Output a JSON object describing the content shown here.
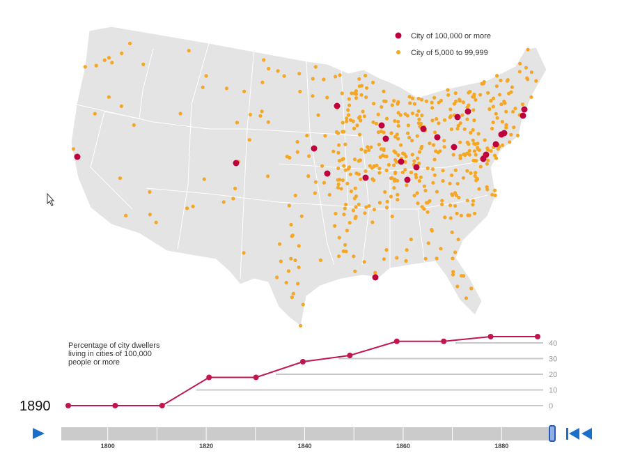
{
  "legend": [
    {
      "label": "City of 100,000 or more",
      "color": "#c0003c"
    },
    {
      "label": "City of 5,000 to 99,999",
      "color": "#f5a623"
    }
  ],
  "current_year": "1890",
  "controls": {
    "play_icon": "play-icon",
    "reset_icon": "skip-to-start-icon",
    "accent": "#1a6fc9"
  },
  "chart_data": {
    "type": "line",
    "title": "Percentage of city dwellers living in cities of 100,000 people or more",
    "title_lines": [
      "Percentage of city dwellers",
      "living in cities of 100,000",
      "people or more"
    ],
    "x": [
      1790,
      1800,
      1810,
      1820,
      1830,
      1840,
      1850,
      1860,
      1870,
      1880,
      1890
    ],
    "values": [
      0,
      0,
      0,
      18,
      18,
      28,
      32,
      41,
      41,
      44,
      44
    ],
    "ylim": [
      0,
      40
    ],
    "yticks": [
      "0",
      "10",
      "20",
      "30",
      "40"
    ],
    "color": "#c0164e",
    "grid": true
  },
  "slider": {
    "ticks": [
      "1800",
      "1820",
      "1840",
      "1860",
      "1880"
    ],
    "range": [
      1790,
      1890
    ],
    "value": 1890
  }
}
